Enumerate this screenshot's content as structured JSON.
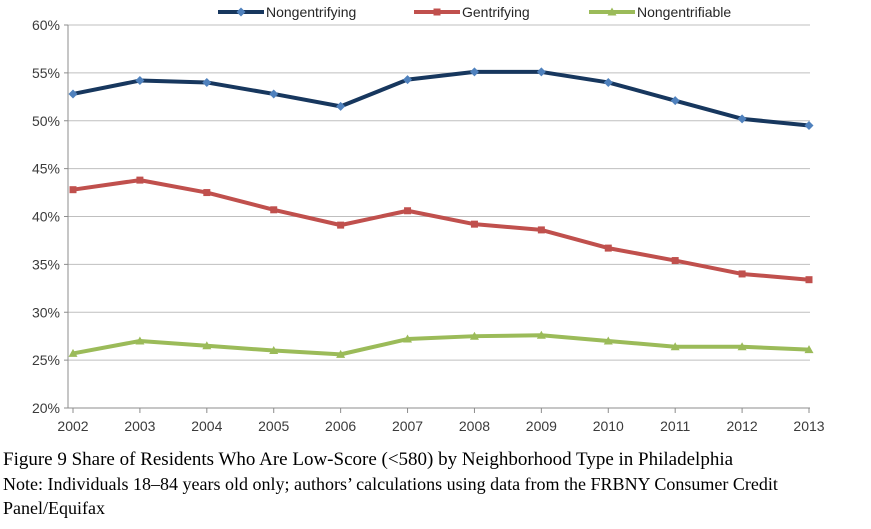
{
  "chart_data": {
    "type": "line",
    "categories": [
      "2002",
      "2003",
      "2004",
      "2005",
      "2006",
      "2007",
      "2008",
      "2009",
      "2010",
      "2011",
      "2012",
      "2013"
    ],
    "series": [
      {
        "name": "Nongentrifying",
        "color": "#17375E",
        "marker_color": "#4F81BD",
        "marker": "diamond",
        "values": [
          52.8,
          54.2,
          54.0,
          52.8,
          51.5,
          54.3,
          55.1,
          55.1,
          54.0,
          52.1,
          50.2,
          49.5
        ]
      },
      {
        "name": "Gentrifying",
        "color": "#C0504D",
        "marker_color": "#C0504D",
        "marker": "square",
        "values": [
          42.8,
          43.8,
          42.5,
          40.7,
          39.1,
          40.6,
          39.2,
          38.6,
          36.7,
          35.4,
          34.0,
          33.4
        ]
      },
      {
        "name": "Nongentrifiable",
        "color": "#9BBB59",
        "marker_color": "#9BBB59",
        "marker": "triangle",
        "values": [
          25.7,
          27.0,
          26.5,
          26.0,
          25.6,
          27.2,
          27.5,
          27.6,
          27.0,
          26.4,
          26.4,
          26.1
        ]
      }
    ],
    "xlabel": "",
    "ylabel": "",
    "ylim": [
      20,
      60
    ],
    "y_tick_labels": [
      "60%",
      "55%",
      "50%",
      "45%",
      "40%",
      "35%",
      "30%",
      "25%",
      "20%"
    ],
    "grid": "horizontal",
    "legend_position": "top",
    "grid_color": "#BFBFBF",
    "axis_color": "#8C8C8C",
    "tick_label_color": "#3B3B3B"
  },
  "caption": {
    "title": "Figure 9 Share of Residents Who Are Low-Score (<580) by Neighborhood Type in Philadelphia",
    "note": "Note: Individuals 18–84 years old only; authors’ calculations using data from the FRBNY Consumer Credit Panel/Equifax"
  }
}
